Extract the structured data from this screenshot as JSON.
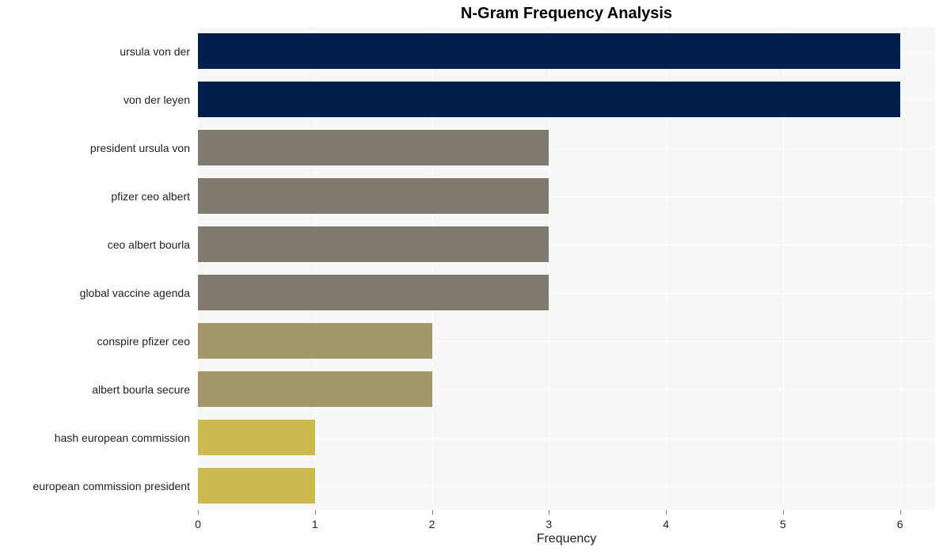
{
  "chart": {
    "type": "bar",
    "orientation": "horizontal",
    "title": "N-Gram Frequency Analysis",
    "title_fontsize": 20,
    "title_fontweight": "bold",
    "xlabel": "Frequency",
    "xlabel_fontsize": 16,
    "xlim": [
      0,
      6.3
    ],
    "xtick_positions": [
      0,
      1,
      2,
      3,
      4,
      5,
      6
    ],
    "xtick_labels": [
      "0",
      "1",
      "2",
      "3",
      "4",
      "5",
      "6"
    ],
    "categories": [
      "ursula von der",
      "von der leyen",
      "president ursula von",
      "pfizer ceo albert",
      "ceo albert bourla",
      "global vaccine agenda",
      "conspire pfizer ceo",
      "albert bourla secure",
      "hash european commission",
      "european commission president"
    ],
    "values": [
      6,
      6,
      3,
      3,
      3,
      3,
      2,
      2,
      1,
      1
    ],
    "bar_colors": [
      "#001f4d",
      "#001f4d",
      "#807a6e",
      "#807a6e",
      "#807a6e",
      "#807a6e",
      "#a39769",
      "#a39769",
      "#cdb94e",
      "#cdb94e"
    ],
    "bar_height_ratio": 0.75,
    "background_color": "#f7f7f7",
    "grid_color": "#ffffff",
    "tick_fontsize": 14,
    "label_color": "#222222"
  }
}
